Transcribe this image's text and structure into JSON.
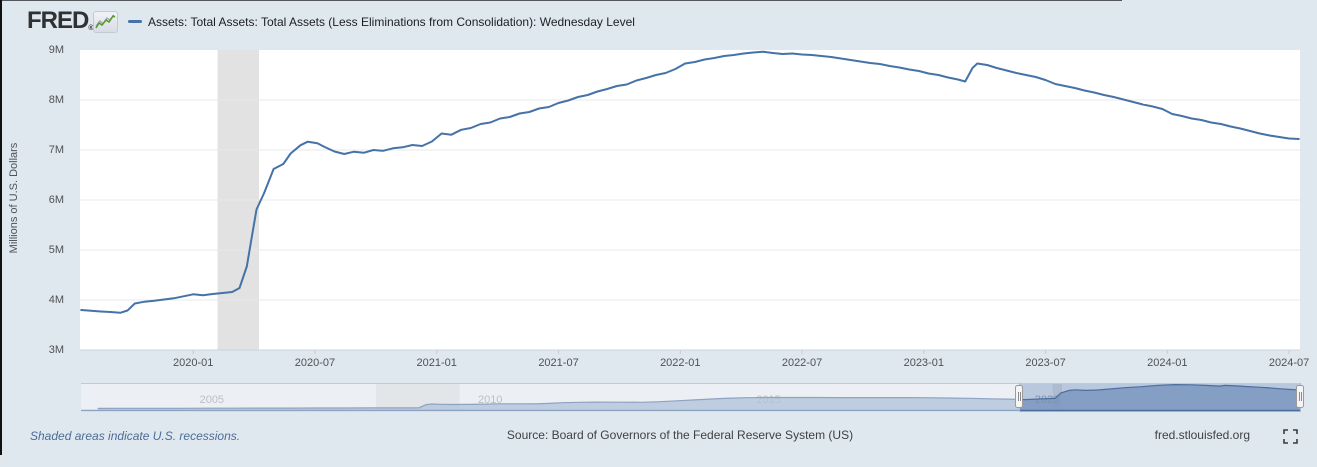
{
  "header": {
    "brand": "FRED",
    "registered": "®",
    "sparkline_icon": "green-sparkline-chart-icon",
    "legend_marker_color": "#4572a7"
  },
  "footer": {
    "note": "Shaded areas indicate U.S. recessions.",
    "source": "Source: Board of Governors of the Federal Reserve System (US)",
    "site": "fred.stlouisfed.org",
    "fullscreen_icon": "expand-corners"
  },
  "colors": {
    "background": "#dfe7ef",
    "plot_background": "#ffffff",
    "line": "#4572a7",
    "recession_band": "#e2e2e2",
    "grid": "#e7e8ea",
    "nav_fill": "#7d9cc1",
    "nav_line": "#41669a"
  },
  "chart_data": [
    {
      "type": "line",
      "title": "Assets: Total Assets: Total Assets (Less Eliminations from Consolidation): Wednesday Level",
      "ylabel": "Millions of U.S. Dollars",
      "xlabel": "",
      "grid": "horizontal",
      "legend_position": "top-left",
      "xlim": [
        2019.535,
        2024.545
      ],
      "ylim": [
        3000000,
        9000000
      ],
      "y_ticks": [
        {
          "label": "9M",
          "v": 9000000
        },
        {
          "label": "8M",
          "v": 8000000
        },
        {
          "label": "7M",
          "v": 7000000
        },
        {
          "label": "6M",
          "v": 6000000
        },
        {
          "label": "5M",
          "v": 5000000
        },
        {
          "label": "4M",
          "v": 4000000
        },
        {
          "label": "3M",
          "v": 3000000
        }
      ],
      "x_ticks": [
        {
          "label": "2020-01",
          "t": 2020.0
        },
        {
          "label": "2020-07",
          "t": 2020.5
        },
        {
          "label": "2021-01",
          "t": 2021.0
        },
        {
          "label": "2021-07",
          "t": 2021.5
        },
        {
          "label": "2022-01",
          "t": 2022.0
        },
        {
          "label": "2022-07",
          "t": 2022.5
        },
        {
          "label": "2023-01",
          "t": 2023.0
        },
        {
          "label": "2023-07",
          "t": 2023.5
        },
        {
          "label": "2024-01",
          "t": 2024.0
        },
        {
          "label": "2024-07",
          "t": 2024.5
        }
      ],
      "recessions": [
        {
          "start": 2020.1,
          "end": 2020.27
        }
      ],
      "points": [
        [
          2019.54,
          3800000
        ],
        [
          2019.58,
          3785000
        ],
        [
          2019.62,
          3770000
        ],
        [
          2019.66,
          3760000
        ],
        [
          2019.7,
          3745000
        ],
        [
          2019.73,
          3790000
        ],
        [
          2019.76,
          3930000
        ],
        [
          2019.8,
          3965000
        ],
        [
          2019.84,
          3985000
        ],
        [
          2019.88,
          4010000
        ],
        [
          2019.92,
          4035000
        ],
        [
          2019.96,
          4075000
        ],
        [
          2020.0,
          4115000
        ],
        [
          2020.04,
          4095000
        ],
        [
          2020.08,
          4120000
        ],
        [
          2020.12,
          4140000
        ],
        [
          2020.16,
          4160000
        ],
        [
          2020.19,
          4240000
        ],
        [
          2020.22,
          4670000
        ],
        [
          2020.24,
          5250000
        ],
        [
          2020.26,
          5810000
        ],
        [
          2020.29,
          6130000
        ],
        [
          2020.31,
          6370000
        ],
        [
          2020.33,
          6620000
        ],
        [
          2020.37,
          6720000
        ],
        [
          2020.4,
          6930000
        ],
        [
          2020.44,
          7095000
        ],
        [
          2020.47,
          7165000
        ],
        [
          2020.51,
          7135000
        ],
        [
          2020.54,
          7060000
        ],
        [
          2020.58,
          6970000
        ],
        [
          2020.62,
          6920000
        ],
        [
          2020.66,
          6965000
        ],
        [
          2020.7,
          6945000
        ],
        [
          2020.74,
          7000000
        ],
        [
          2020.78,
          6985000
        ],
        [
          2020.82,
          7035000
        ],
        [
          2020.86,
          7055000
        ],
        [
          2020.9,
          7100000
        ],
        [
          2020.94,
          7080000
        ],
        [
          2020.98,
          7170000
        ],
        [
          2021.02,
          7330000
        ],
        [
          2021.06,
          7305000
        ],
        [
          2021.1,
          7405000
        ],
        [
          2021.14,
          7440000
        ],
        [
          2021.18,
          7520000
        ],
        [
          2021.22,
          7550000
        ],
        [
          2021.26,
          7630000
        ],
        [
          2021.3,
          7660000
        ],
        [
          2021.34,
          7730000
        ],
        [
          2021.38,
          7760000
        ],
        [
          2021.42,
          7830000
        ],
        [
          2021.46,
          7860000
        ],
        [
          2021.5,
          7940000
        ],
        [
          2021.54,
          7990000
        ],
        [
          2021.58,
          8060000
        ],
        [
          2021.62,
          8100000
        ],
        [
          2021.66,
          8170000
        ],
        [
          2021.7,
          8220000
        ],
        [
          2021.74,
          8280000
        ],
        [
          2021.78,
          8310000
        ],
        [
          2021.82,
          8390000
        ],
        [
          2021.86,
          8440000
        ],
        [
          2021.9,
          8500000
        ],
        [
          2021.94,
          8540000
        ],
        [
          2021.98,
          8620000
        ],
        [
          2022.02,
          8730000
        ],
        [
          2022.06,
          8760000
        ],
        [
          2022.1,
          8810000
        ],
        [
          2022.14,
          8840000
        ],
        [
          2022.18,
          8880000
        ],
        [
          2022.22,
          8900000
        ],
        [
          2022.26,
          8930000
        ],
        [
          2022.3,
          8950000
        ],
        [
          2022.34,
          8965000
        ],
        [
          2022.38,
          8940000
        ],
        [
          2022.42,
          8920000
        ],
        [
          2022.46,
          8930000
        ],
        [
          2022.5,
          8910000
        ],
        [
          2022.54,
          8900000
        ],
        [
          2022.58,
          8880000
        ],
        [
          2022.62,
          8860000
        ],
        [
          2022.66,
          8830000
        ],
        [
          2022.7,
          8800000
        ],
        [
          2022.74,
          8770000
        ],
        [
          2022.78,
          8740000
        ],
        [
          2022.82,
          8720000
        ],
        [
          2022.86,
          8680000
        ],
        [
          2022.9,
          8650000
        ],
        [
          2022.94,
          8610000
        ],
        [
          2022.98,
          8580000
        ],
        [
          2023.02,
          8530000
        ],
        [
          2023.06,
          8500000
        ],
        [
          2023.1,
          8450000
        ],
        [
          2023.14,
          8410000
        ],
        [
          2023.17,
          8370000
        ],
        [
          2023.2,
          8640000
        ],
        [
          2023.22,
          8730000
        ],
        [
          2023.26,
          8700000
        ],
        [
          2023.3,
          8640000
        ],
        [
          2023.34,
          8590000
        ],
        [
          2023.38,
          8540000
        ],
        [
          2023.42,
          8500000
        ],
        [
          2023.46,
          8460000
        ],
        [
          2023.5,
          8400000
        ],
        [
          2023.54,
          8320000
        ],
        [
          2023.58,
          8280000
        ],
        [
          2023.62,
          8240000
        ],
        [
          2023.66,
          8190000
        ],
        [
          2023.7,
          8150000
        ],
        [
          2023.74,
          8100000
        ],
        [
          2023.78,
          8060000
        ],
        [
          2023.82,
          8010000
        ],
        [
          2023.86,
          7960000
        ],
        [
          2023.9,
          7910000
        ],
        [
          2023.94,
          7870000
        ],
        [
          2023.98,
          7820000
        ],
        [
          2024.02,
          7720000
        ],
        [
          2024.06,
          7680000
        ],
        [
          2024.1,
          7630000
        ],
        [
          2024.14,
          7600000
        ],
        [
          2024.18,
          7550000
        ],
        [
          2024.22,
          7520000
        ],
        [
          2024.26,
          7470000
        ],
        [
          2024.3,
          7430000
        ],
        [
          2024.34,
          7380000
        ],
        [
          2024.38,
          7330000
        ],
        [
          2024.42,
          7290000
        ],
        [
          2024.46,
          7260000
        ],
        [
          2024.5,
          7230000
        ],
        [
          2024.54,
          7220000
        ]
      ]
    },
    {
      "type": "area",
      "role": "navigator",
      "xlim": [
        2002.65,
        2024.545
      ],
      "ylim": [
        0,
        9000000
      ],
      "selection": {
        "start": 2019.5,
        "end": 2024.545
      },
      "x_ticks": [
        {
          "label": "2005",
          "t": 2005
        },
        {
          "label": "2010",
          "t": 2010
        },
        {
          "label": "2015",
          "t": 2015
        },
        {
          "label": "2020",
          "t": 2020
        }
      ],
      "recessions": [
        {
          "start": 2007.95,
          "end": 2009.45
        },
        {
          "start": 2020.1,
          "end": 2020.27
        }
      ],
      "points": [
        [
          2002.95,
          730000
        ],
        [
          2003.4,
          745000
        ],
        [
          2003.9,
          760000
        ],
        [
          2004.4,
          775000
        ],
        [
          2004.9,
          790000
        ],
        [
          2005.4,
          805000
        ],
        [
          2005.9,
          820000
        ],
        [
          2006.4,
          835000
        ],
        [
          2006.9,
          855000
        ],
        [
          2007.4,
          870000
        ],
        [
          2007.9,
          885000
        ],
        [
          2008.3,
          895000
        ],
        [
          2008.6,
          905000
        ],
        [
          2008.72,
          940000
        ],
        [
          2008.78,
          1450000
        ],
        [
          2008.85,
          2050000
        ],
        [
          2008.95,
          2240000
        ],
        [
          2009.1,
          2150000
        ],
        [
          2009.3,
          2070000
        ],
        [
          2009.6,
          2120000
        ],
        [
          2009.9,
          2230000
        ],
        [
          2010.2,
          2320000
        ],
        [
          2010.5,
          2330000
        ],
        [
          2010.8,
          2300000
        ],
        [
          2011.0,
          2430000
        ],
        [
          2011.3,
          2700000
        ],
        [
          2011.6,
          2850000
        ],
        [
          2011.9,
          2920000
        ],
        [
          2012.3,
          2880000
        ],
        [
          2012.7,
          2850000
        ],
        [
          2013.0,
          3010000
        ],
        [
          2013.4,
          3400000
        ],
        [
          2013.8,
          3800000
        ],
        [
          2014.2,
          4200000
        ],
        [
          2014.6,
          4420000
        ],
        [
          2015.0,
          4500000
        ],
        [
          2015.4,
          4510000
        ],
        [
          2015.8,
          4490000
        ],
        [
          2016.2,
          4470000
        ],
        [
          2016.6,
          4450000
        ],
        [
          2017.0,
          4460000
        ],
        [
          2017.4,
          4470000
        ],
        [
          2017.8,
          4430000
        ],
        [
          2018.2,
          4340000
        ],
        [
          2018.6,
          4230000
        ],
        [
          2019.0,
          4060000
        ],
        [
          2019.3,
          3940000
        ],
        [
          2019.6,
          3770000
        ],
        [
          2019.8,
          3960000
        ],
        [
          2020.0,
          4120000
        ],
        [
          2020.15,
          4200000
        ],
        [
          2020.25,
          6100000
        ],
        [
          2020.4,
          6950000
        ],
        [
          2020.5,
          7150000
        ],
        [
          2020.7,
          6950000
        ],
        [
          2020.9,
          7080000
        ],
        [
          2021.1,
          7400000
        ],
        [
          2021.4,
          7900000
        ],
        [
          2021.7,
          8250000
        ],
        [
          2022.0,
          8730000
        ],
        [
          2022.3,
          8950000
        ],
        [
          2022.6,
          8890000
        ],
        [
          2022.9,
          8650000
        ],
        [
          2023.1,
          8450000
        ],
        [
          2023.2,
          8700000
        ],
        [
          2023.4,
          8500000
        ],
        [
          2023.6,
          8260000
        ],
        [
          2023.8,
          8060000
        ],
        [
          2024.0,
          7820000
        ],
        [
          2024.2,
          7520000
        ],
        [
          2024.42,
          7220000
        ],
        [
          2024.54,
          7200000
        ]
      ]
    }
  ]
}
